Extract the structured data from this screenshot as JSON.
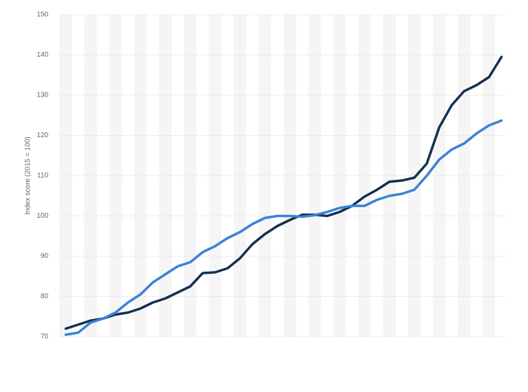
{
  "chart_data": {
    "type": "line",
    "y_label": "Index score (2015 = 100)",
    "categories": [
      null,
      null,
      null,
      null,
      null,
      null,
      null,
      null,
      null,
      null,
      null,
      null,
      null,
      null,
      null,
      null,
      null,
      null,
      null,
      null,
      null,
      null,
      null,
      null,
      null,
      null,
      null,
      null,
      null,
      null,
      null,
      null,
      null,
      null,
      null,
      null
    ],
    "series": [
      {
        "color": "#14304f",
        "values": [
          72,
          73,
          74,
          74.5,
          75.5,
          76,
          77,
          78.5,
          79.5,
          81,
          82.5,
          85.8,
          86,
          87,
          89.5,
          93,
          95.5,
          97.5,
          99,
          100.3,
          100.3,
          100,
          101,
          102.5,
          104.8,
          106.5,
          108.5,
          108.8,
          109.5,
          113,
          122,
          127.5,
          131,
          132.5,
          134.5,
          139.5
        ]
      },
      {
        "color": "#3b82d6",
        "values": [
          70.5,
          71,
          73.5,
          74.5,
          76,
          78.5,
          80.5,
          83.5,
          85.5,
          87.5,
          88.5,
          91,
          92.5,
          94.5,
          96,
          98,
          99.5,
          100,
          100,
          99.8,
          100.2,
          101,
          102,
          102.5,
          102.5,
          104,
          105,
          105.5,
          106.5,
          110,
          114,
          116.5,
          118,
          120.5,
          122.5,
          123.7
        ]
      }
    ],
    "ylim": [
      70,
      150
    ],
    "yticks": [
      70,
      80,
      90,
      100,
      110,
      120,
      130,
      140,
      150
    ],
    "grid": true
  }
}
